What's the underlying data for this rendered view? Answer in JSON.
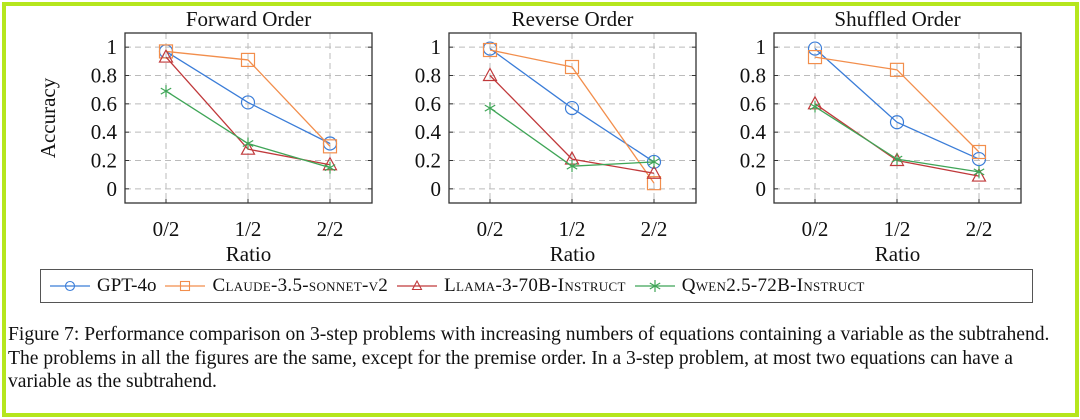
{
  "colors": {
    "border": "#b5e61d",
    "gpt": "#3b7dd8",
    "claude": "#f28e4c",
    "llama": "#c0393b",
    "qwen": "#3fa557"
  },
  "legend": [
    {
      "name": "GPT-4o",
      "marker": "circle",
      "color": "#3b7dd8"
    },
    {
      "name": "Claude-3.5-sonnet-v2",
      "marker": "square",
      "color": "#f28e4c"
    },
    {
      "name": "Llama-3-70B-Instruct",
      "marker": "triangle",
      "color": "#c0393b"
    },
    {
      "name": "Qwen2.5-72B-Instruct",
      "marker": "star",
      "color": "#3fa557"
    }
  ],
  "chart_data": [
    {
      "type": "line",
      "title": "Forward Order",
      "xlabel": "Ratio",
      "ylabel": "Accuracy",
      "categories": [
        "0/2",
        "1/2",
        "2/2"
      ],
      "ylim": [
        -0.1,
        1.1
      ],
      "yticks": [
        "0",
        "0.2",
        "0.4",
        "0.6",
        "0.8",
        "1"
      ],
      "grid": true,
      "series": [
        {
          "name": "GPT-4o",
          "values": [
            0.97,
            0.61,
            0.32
          ]
        },
        {
          "name": "Claude-3.5-sonnet-v2",
          "values": [
            0.97,
            0.91,
            0.3
          ]
        },
        {
          "name": "Llama-3-70B-Instruct",
          "values": [
            0.93,
            0.28,
            0.17
          ]
        },
        {
          "name": "Qwen2.5-72B-Instruct",
          "values": [
            0.69,
            0.32,
            0.15
          ]
        }
      ]
    },
    {
      "type": "line",
      "title": "Reverse Order",
      "xlabel": "Ratio",
      "ylabel": "",
      "categories": [
        "0/2",
        "1/2",
        "2/2"
      ],
      "ylim": [
        -0.1,
        1.1
      ],
      "yticks": [
        "0",
        "0.2",
        "0.4",
        "0.6",
        "0.8",
        "1"
      ],
      "grid": true,
      "series": [
        {
          "name": "GPT-4o",
          "values": [
            0.99,
            0.57,
            0.19
          ]
        },
        {
          "name": "Claude-3.5-sonnet-v2",
          "values": [
            0.98,
            0.86,
            0.04
          ]
        },
        {
          "name": "Llama-3-70B-Instruct",
          "values": [
            0.8,
            0.21,
            0.11
          ]
        },
        {
          "name": "Qwen2.5-72B-Instruct",
          "values": [
            0.57,
            0.16,
            0.19
          ]
        }
      ]
    },
    {
      "type": "line",
      "title": "Shuffled Order",
      "xlabel": "Ratio",
      "ylabel": "",
      "categories": [
        "0/2",
        "1/2",
        "2/2"
      ],
      "ylim": [
        -0.1,
        1.1
      ],
      "yticks": [
        "0",
        "0.2",
        "0.4",
        "0.6",
        "0.8",
        "1"
      ],
      "grid": true,
      "series": [
        {
          "name": "GPT-4o",
          "values": [
            0.99,
            0.47,
            0.21
          ]
        },
        {
          "name": "Claude-3.5-sonnet-v2",
          "values": [
            0.93,
            0.84,
            0.26
          ]
        },
        {
          "name": "Llama-3-70B-Instruct",
          "values": [
            0.6,
            0.2,
            0.09
          ]
        },
        {
          "name": "Qwen2.5-72B-Instruct",
          "values": [
            0.58,
            0.21,
            0.12
          ]
        }
      ]
    }
  ],
  "legend_placement": "bottom",
  "caption": "Figure 7: Performance comparison on 3-step problems with increasing numbers of equations containing a variable as the subtrahend. The problems in all the figures are the same, except for the premise order. In a 3-step problem, at most two equations can have a variable as the subtrahend."
}
